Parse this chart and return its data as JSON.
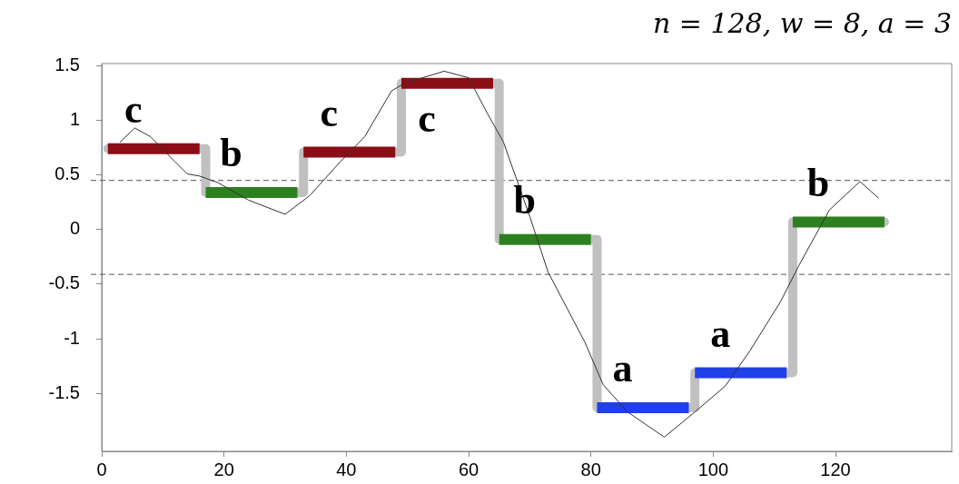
{
  "chart_data": {
    "type": "line",
    "subtitle": "n = 128, w = 8, a = 3",
    "xlim": [
      0,
      139
    ],
    "xticks": [
      0,
      20,
      40,
      60,
      80,
      100,
      120
    ],
    "ylim": [
      -2.03,
      1.52
    ],
    "yticks": [
      -1.5,
      -1,
      -0.5,
      0,
      0.5,
      1,
      1.5
    ],
    "grid": false,
    "legend": false,
    "marker": "none",
    "line_style": "solid",
    "series": [
      {
        "type": "step",
        "color": "#c0c0c0",
        "x": [
          1,
          17,
          33,
          49,
          65,
          81,
          97,
          113,
          128
        ],
        "values": [
          0.74,
          0.34,
          0.71,
          1.34,
          -0.09,
          -1.63,
          -1.31,
          0.07,
          0.07
        ]
      },
      {
        "color": "#8b0d16",
        "x": [
          1,
          16
        ],
        "values": [
          0.74,
          0.74
        ]
      },
      {
        "color": "#2d8020",
        "x": [
          17,
          32
        ],
        "values": [
          0.34,
          0.34
        ]
      },
      {
        "color": "#8b0d16",
        "x": [
          33,
          48
        ],
        "values": [
          0.71,
          0.71
        ]
      },
      {
        "color": "#8b0d16",
        "x": [
          49,
          64
        ],
        "values": [
          1.34,
          1.34
        ]
      },
      {
        "color": "#2d8020",
        "x": [
          65,
          80
        ],
        "values": [
          -0.09,
          -0.09
        ]
      },
      {
        "color": "#2040e8",
        "x": [
          81,
          96
        ],
        "values": [
          -1.63,
          -1.63
        ]
      },
      {
        "color": "#2040e8",
        "x": [
          97,
          112
        ],
        "values": [
          -1.31,
          -1.31
        ]
      },
      {
        "color": "#2d8020",
        "x": [
          113,
          128
        ],
        "values": [
          0.07,
          0.07
        ]
      },
      {
        "color": "#333333",
        "x": [
          3,
          5.4,
          8,
          12,
          14,
          16,
          19,
          24,
          30,
          34,
          39,
          43,
          47.4,
          49.5,
          56,
          60,
          63,
          65.7,
          70,
          73,
          79,
          82,
          86,
          92,
          97,
          102,
          106,
          111,
          114,
          119,
          124,
          127
        ],
        "values": [
          0.8,
          0.93,
          0.85,
          0.62,
          0.51,
          0.49,
          0.43,
          0.27,
          0.14,
          0.31,
          0.62,
          0.85,
          1.27,
          1.34,
          1.45,
          1.39,
          1.07,
          0.8,
          0.12,
          -0.39,
          -1.03,
          -1.42,
          -1.67,
          -1.9,
          -1.67,
          -1.43,
          -1.11,
          -0.66,
          -0.33,
          0.18,
          0.44,
          0.29
        ]
      }
    ],
    "ref_lines": [
      {
        "axis": "y",
        "value": 0.45,
        "line_style": "dashed",
        "color": "#555555"
      },
      {
        "axis": "y",
        "value": -0.41,
        "line_style": "dashed",
        "color": "#555555"
      }
    ],
    "annotations": [
      {
        "text": "c",
        "x": 1,
        "y": 0.74
      },
      {
        "text": "b",
        "x": 17,
        "y": 0.34
      },
      {
        "text": "c",
        "x": 33,
        "y": 0.71
      },
      {
        "text": "c",
        "x": 49,
        "y": 1.34
      },
      {
        "text": "b",
        "x": 65,
        "y": -0.09
      },
      {
        "text": "a",
        "x": 81,
        "y": -1.63
      },
      {
        "text": "a",
        "x": 97,
        "y": -1.31
      },
      {
        "text": "b",
        "x": 113,
        "y": 0.07
      }
    ]
  }
}
